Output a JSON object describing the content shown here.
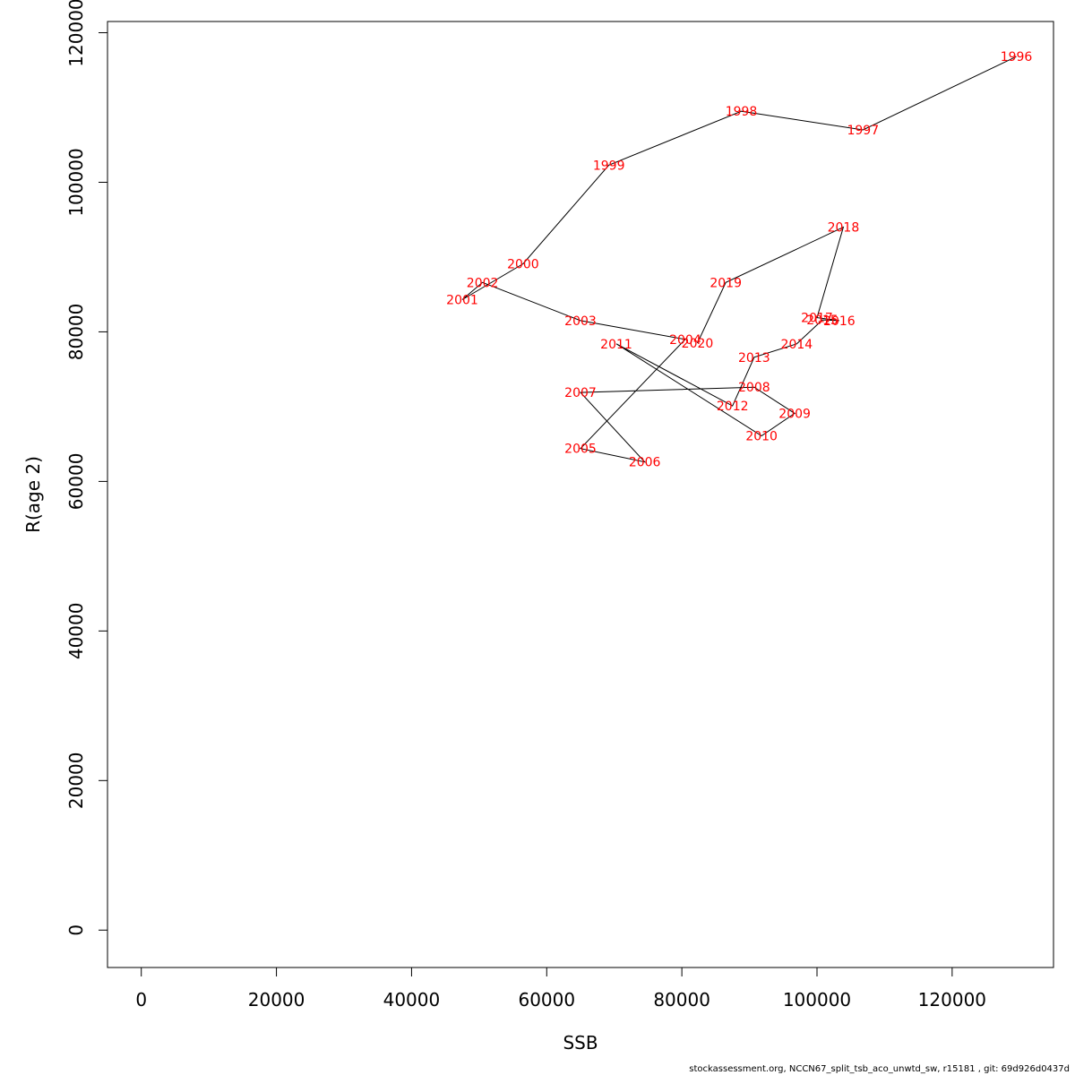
{
  "chart_data": {
    "type": "line",
    "xlabel": "SSB",
    "ylabel": "R(age 2)",
    "xlim": [
      -5000,
      135000
    ],
    "ylim": [
      -5000,
      121500
    ],
    "x_ticks": [
      "0",
      "20000",
      "40000",
      "60000",
      "80000",
      "100000",
      "120000"
    ],
    "y_ticks": [
      "0",
      "20000",
      "40000",
      "60000",
      "80000",
      "100000",
      "120000"
    ],
    "label_color": "#ff0000",
    "line_color": "#000000",
    "points": [
      {
        "label": "1996",
        "x": 129500,
        "y": 116800
      },
      {
        "label": "1997",
        "x": 106800,
        "y": 107000
      },
      {
        "label": "1998",
        "x": 88800,
        "y": 109500
      },
      {
        "label": "1999",
        "x": 69200,
        "y": 102300
      },
      {
        "label": "2000",
        "x": 56500,
        "y": 89100
      },
      {
        "label": "2001",
        "x": 47500,
        "y": 84300
      },
      {
        "label": "2002",
        "x": 50500,
        "y": 86600
      },
      {
        "label": "2003",
        "x": 65000,
        "y": 81500
      },
      {
        "label": "2004",
        "x": 80500,
        "y": 79000
      },
      {
        "label": "2005",
        "x": 65000,
        "y": 64400
      },
      {
        "label": "2006",
        "x": 74500,
        "y": 62600
      },
      {
        "label": "2007",
        "x": 65000,
        "y": 71900
      },
      {
        "label": "2008",
        "x": 90700,
        "y": 72600
      },
      {
        "label": "2009",
        "x": 96700,
        "y": 69100
      },
      {
        "label": "2010",
        "x": 91800,
        "y": 66100
      },
      {
        "label": "2011",
        "x": 70300,
        "y": 78400
      },
      {
        "label": "2012",
        "x": 87500,
        "y": 70100
      },
      {
        "label": "2013",
        "x": 90700,
        "y": 76600
      },
      {
        "label": "2014",
        "x": 97000,
        "y": 78400
      },
      {
        "label": "2015",
        "x": 100800,
        "y": 81600
      },
      {
        "label": "2016",
        "x": 103300,
        "y": 81500
      },
      {
        "label": "2017",
        "x": 100000,
        "y": 81900
      },
      {
        "label": "2018",
        "x": 103900,
        "y": 94000
      },
      {
        "label": "2019",
        "x": 86500,
        "y": 86600
      },
      {
        "label": "2020",
        "x": 82300,
        "y": 78500
      }
    ]
  },
  "footer": {
    "text": "stockassessment.org, NCCN67_split_tsb_aco_unwtd_sw, r15181 , git: 69d926d0437d"
  }
}
